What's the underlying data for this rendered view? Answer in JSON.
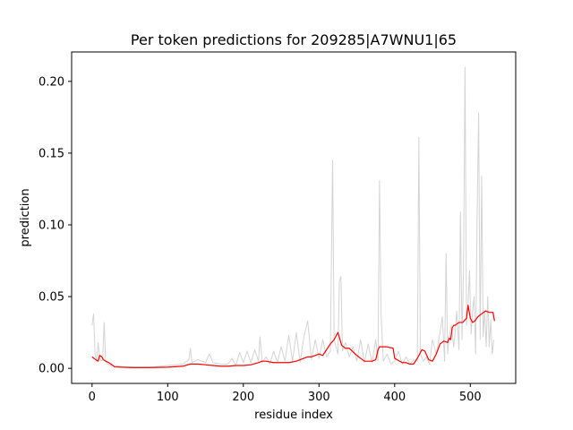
{
  "chart_data": {
    "type": "line",
    "title": "Per token predictions for 209285|A7WNU1|65",
    "xlabel": "residue index",
    "ylabel": "prediction",
    "xlim": [
      -27,
      560
    ],
    "ylim": [
      -0.0105,
      0.2205
    ],
    "xticks": [
      0,
      100,
      200,
      300,
      400,
      500
    ],
    "yticks": [
      0.0,
      0.05,
      0.1,
      0.15,
      0.2
    ],
    "xtick_labels": [
      "0",
      "100",
      "200",
      "300",
      "400",
      "500"
    ],
    "ytick_labels": [
      "0.00",
      "0.05",
      "0.10",
      "0.15",
      "0.20"
    ],
    "grid": false,
    "series": [
      {
        "color": "#d3d3d3",
        "x": [
          0,
          2,
          4,
          6,
          8,
          10,
          12,
          14,
          16,
          18,
          20,
          25,
          30,
          40,
          50,
          60,
          80,
          100,
          120,
          128,
          130,
          132,
          140,
          150,
          155,
          160,
          170,
          180,
          185,
          190,
          195,
          200,
          205,
          210,
          215,
          220,
          222,
          225,
          230,
          235,
          240,
          245,
          250,
          255,
          260,
          265,
          270,
          275,
          280,
          285,
          290,
          295,
          300,
          305,
          310,
          315,
          318,
          320,
          325,
          327,
          329,
          331,
          335,
          340,
          345,
          350,
          355,
          360,
          365,
          370,
          375,
          378,
          380,
          382,
          385,
          390,
          395,
          400,
          405,
          410,
          415,
          420,
          425,
          430,
          432,
          434,
          438,
          442,
          446,
          450,
          455,
          460,
          463,
          466,
          468,
          470,
          472,
          475,
          478,
          480,
          482,
          485,
          487,
          489,
          491,
          493,
          495,
          497,
          499,
          501,
          503,
          505,
          507,
          509,
          511,
          513,
          515,
          517,
          519,
          521,
          523,
          525,
          527,
          529,
          531
        ],
        "values": [
          0.03,
          0.038,
          0.01,
          0.005,
          0.018,
          0.008,
          0.005,
          0.006,
          0.032,
          0.005,
          0.003,
          0.002,
          0.002,
          0.001,
          0.001,
          0.001,
          0.001,
          0.002,
          0.003,
          0.006,
          0.014,
          0.004,
          0.006,
          0.004,
          0.01,
          0.004,
          0.003,
          0.003,
          0.007,
          0.002,
          0.011,
          0.004,
          0.012,
          0.004,
          0.013,
          0.005,
          0.022,
          0.004,
          0.008,
          0.003,
          0.012,
          0.004,
          0.015,
          0.005,
          0.023,
          0.005,
          0.025,
          0.004,
          0.022,
          0.033,
          0.006,
          0.02,
          0.007,
          0.02,
          0.008,
          0.012,
          0.145,
          0.02,
          0.01,
          0.061,
          0.064,
          0.012,
          0.018,
          0.008,
          0.015,
          0.005,
          0.02,
          0.004,
          0.017,
          0.004,
          0.02,
          0.005,
          0.131,
          0.038,
          0.005,
          0.01,
          0.003,
          0.005,
          0.012,
          0.003,
          0.008,
          0.003,
          0.006,
          0.005,
          0.161,
          0.01,
          0.005,
          0.008,
          0.003,
          0.02,
          0.01,
          0.025,
          0.036,
          0.005,
          0.08,
          0.01,
          0.022,
          0.03,
          0.015,
          0.025,
          0.04,
          0.013,
          0.109,
          0.02,
          0.068,
          0.21,
          0.03,
          0.045,
          0.068,
          0.024,
          0.04,
          0.05,
          0.01,
          0.105,
          0.178,
          0.02,
          0.134,
          0.022,
          0.04,
          0.015,
          0.05,
          0.015,
          0.034,
          0.01,
          0.02
        ]
      },
      {
        "color": "#ff0000",
        "x": [
          0,
          5,
          8,
          10,
          13,
          15,
          18,
          22,
          25,
          30,
          40,
          50,
          60,
          80,
          100,
          120,
          130,
          140,
          150,
          160,
          170,
          180,
          190,
          200,
          210,
          220,
          225,
          230,
          240,
          250,
          260,
          270,
          280,
          285,
          290,
          300,
          305,
          310,
          315,
          320,
          325,
          330,
          335,
          340,
          350,
          360,
          370,
          375,
          378,
          380,
          390,
          398,
          400,
          410,
          415,
          420,
          425,
          430,
          433,
          436,
          440,
          445,
          450,
          455,
          460,
          465,
          470,
          472,
          474,
          476,
          478,
          480,
          485,
          490,
          495,
          497,
          500,
          503,
          506,
          510,
          515,
          520,
          525,
          530,
          532
        ],
        "values": [
          0.008,
          0.006,
          0.005,
          0.009,
          0.008,
          0.006,
          0.005,
          0.004,
          0.003,
          0.001,
          0.0008,
          0.0006,
          0.0005,
          0.0006,
          0.0008,
          0.0015,
          0.003,
          0.003,
          0.0025,
          0.002,
          0.0015,
          0.0015,
          0.002,
          0.002,
          0.0025,
          0.004,
          0.005,
          0.005,
          0.004,
          0.004,
          0.004,
          0.005,
          0.007,
          0.008,
          0.008,
          0.01,
          0.009,
          0.013,
          0.017,
          0.02,
          0.025,
          0.016,
          0.014,
          0.014,
          0.009,
          0.005,
          0.005,
          0.006,
          0.013,
          0.015,
          0.015,
          0.014,
          0.007,
          0.004,
          0.004,
          0.003,
          0.003,
          0.007,
          0.01,
          0.013,
          0.012,
          0.006,
          0.005,
          0.01,
          0.017,
          0.019,
          0.018,
          0.021,
          0.02,
          0.028,
          0.03,
          0.03,
          0.032,
          0.032,
          0.035,
          0.044,
          0.035,
          0.032,
          0.033,
          0.036,
          0.038,
          0.04,
          0.039,
          0.039,
          0.033
        ]
      }
    ]
  }
}
